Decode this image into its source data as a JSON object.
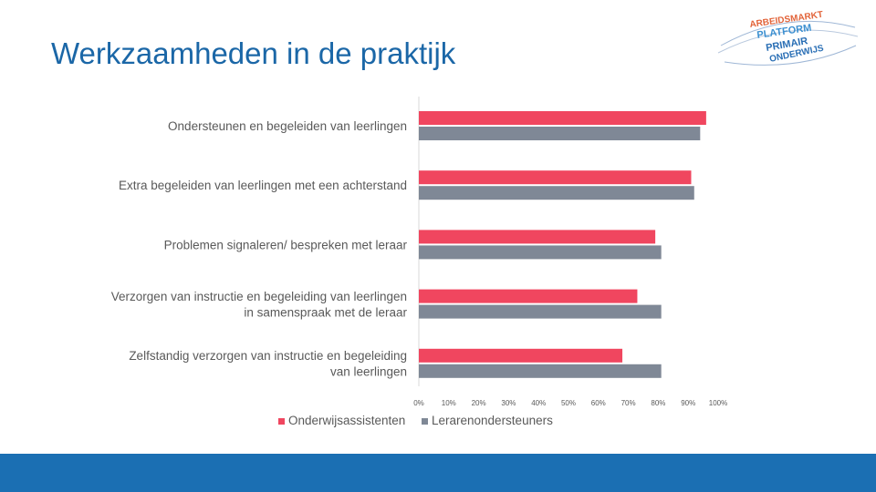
{
  "slide": {
    "title": "Werkzaamheden in de praktijk"
  },
  "logo": {
    "line1": "ARBEIDSMARKT",
    "line2": "PLATFORM",
    "line3": "PRIMAIR",
    "line4": "ONDERWIJS"
  },
  "colors": {
    "accent": "#1b67a7",
    "footer": "#1b6fb3",
    "series1": "#f0465f",
    "series2": "#7f8896"
  },
  "chart_data": {
    "type": "bar",
    "orientation": "horizontal",
    "categories": [
      [
        "Ondersteunen en begeleiden van leerlingen"
      ],
      [
        "Extra begeleiden van leerlingen met een achterstand"
      ],
      [
        "Problemen signaleren/ bespreken met leraar"
      ],
      [
        "Verzorgen van instructie en begeleiding van leerlingen",
        "in samenspraak met de leraar"
      ],
      [
        "Zelfstandig  verzorgen van instructie en begeleiding",
        "van leerlingen"
      ]
    ],
    "series": [
      {
        "name": "Onderwijsassistenten",
        "values": [
          96,
          91,
          79,
          73,
          68
        ]
      },
      {
        "name": "Lerarenondersteuners",
        "values": [
          94,
          92,
          81,
          81,
          81
        ]
      }
    ],
    "xlim": [
      0,
      100
    ],
    "ticks": [
      "0%",
      "10%",
      "20%",
      "30%",
      "40%",
      "50%",
      "60%",
      "70%",
      "80%",
      "90%",
      "100%"
    ],
    "grid": false,
    "legend": "bottom"
  }
}
